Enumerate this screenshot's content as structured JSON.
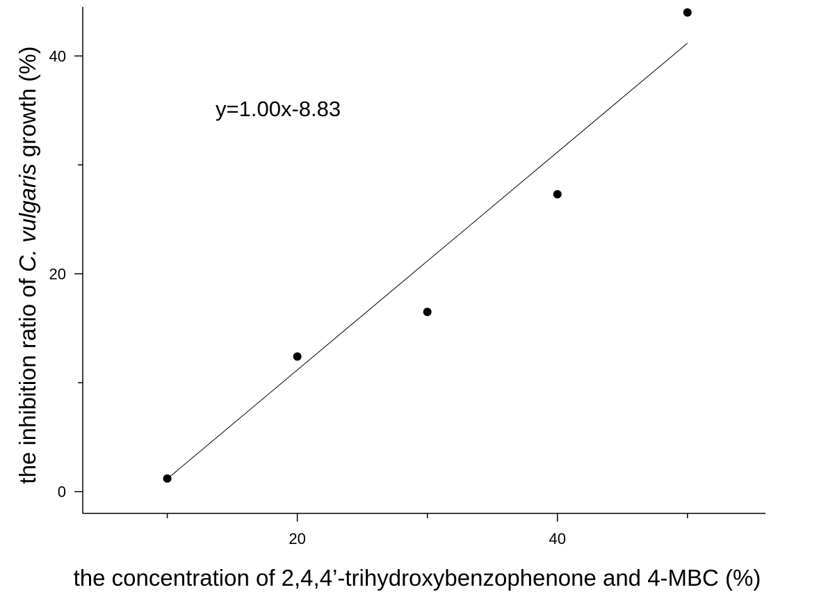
{
  "chart_data": {
    "type": "scatter",
    "xlabel": "the concentration of 2,4,4’-trihydroxybenzophenone and 4-MBC (%)",
    "ylabel": {
      "pre": "the inhibition ratio of ",
      "italic": "C. vulgaris",
      "post": " growth (%)"
    },
    "x_ticks": [
      20,
      40
    ],
    "x_minor_ticks": [
      10,
      30,
      50
    ],
    "y_ticks": [
      0,
      20,
      40
    ],
    "y_minor_ticks": [
      10,
      30
    ],
    "xlim": [
      3.5,
      56
    ],
    "ylim": [
      -2,
      44.5
    ],
    "points": [
      {
        "x": 10,
        "y": 1.2
      },
      {
        "x": 20,
        "y": 12.4
      },
      {
        "x": 30,
        "y": 16.5
      },
      {
        "x": 40,
        "y": 27.3
      },
      {
        "x": 50,
        "y": 44.0
      }
    ],
    "fit": {
      "equation": "y=1.00x-8.83",
      "slope": 1.0,
      "intercept": -8.83,
      "x_range": [
        10,
        50
      ]
    },
    "grid": false,
    "legend": "none"
  }
}
